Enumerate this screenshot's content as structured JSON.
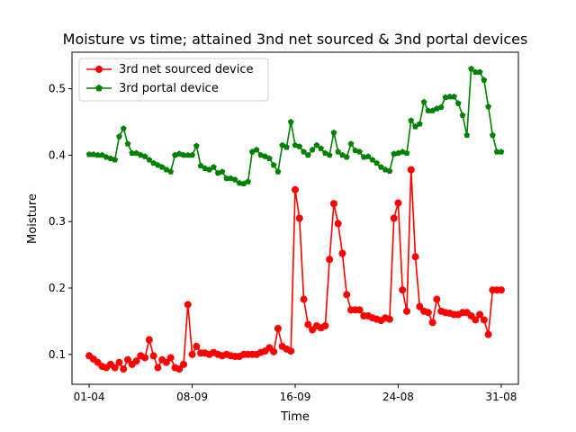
{
  "chart_data": {
    "type": "line",
    "title": "Moisture vs time; attained 3nd net sourced &  3nd portal devices",
    "xlabel": "Time",
    "ylabel": "Moisture",
    "x_ticks": [
      "01-04",
      "08-09",
      "16-09",
      "24-08",
      "31-08"
    ],
    "x_tick_index": [
      0,
      24,
      48,
      72,
      96
    ],
    "xlim": [
      -4,
      100
    ],
    "ylim": [
      0.055,
      0.555
    ],
    "y_ticks": [
      0.1,
      0.2,
      0.3,
      0.4,
      0.5
    ],
    "grid": false,
    "legend_position": "top-left",
    "series": [
      {
        "name": "3rd net sourced device",
        "color": "#ff0000",
        "marker": "circle",
        "x": [
          0,
          1,
          2,
          3,
          4,
          5,
          6,
          7,
          8,
          9,
          10,
          11,
          12,
          13,
          14,
          15,
          16,
          17,
          18,
          19,
          20,
          21,
          22,
          23,
          24,
          25,
          26,
          27,
          28,
          29,
          30,
          31,
          32,
          33,
          34,
          35,
          36,
          37,
          38,
          39,
          40,
          41,
          42,
          43,
          44,
          45,
          46,
          47,
          48,
          49,
          50,
          51,
          52,
          53,
          54,
          55,
          56,
          57,
          58,
          59,
          60,
          61,
          62,
          63,
          64,
          65,
          66,
          67,
          68,
          69,
          70,
          71,
          72,
          73,
          74,
          75,
          76,
          77,
          78,
          79,
          80,
          81,
          82,
          83,
          84,
          85,
          86,
          87,
          88,
          89,
          90,
          91,
          92,
          93,
          94,
          95,
          96
        ],
        "y": [
          0.098,
          0.093,
          0.088,
          0.082,
          0.08,
          0.085,
          0.08,
          0.088,
          0.078,
          0.092,
          0.085,
          0.09,
          0.098,
          0.095,
          0.122,
          0.098,
          0.08,
          0.092,
          0.088,
          0.095,
          0.08,
          0.078,
          0.085,
          0.175,
          0.1,
          0.112,
          0.102,
          0.102,
          0.1,
          0.103,
          0.1,
          0.098,
          0.1,
          0.098,
          0.097,
          0.097,
          0.1,
          0.1,
          0.1,
          0.1,
          0.103,
          0.105,
          0.11,
          0.104,
          0.139,
          0.112,
          0.108,
          0.105,
          0.348,
          0.305,
          0.183,
          0.145,
          0.137,
          0.143,
          0.14,
          0.143,
          0.243,
          0.327,
          0.297,
          0.252,
          0.19,
          0.167,
          0.167,
          0.167,
          0.158,
          0.158,
          0.155,
          0.153,
          0.151,
          0.155,
          0.153,
          0.305,
          0.328,
          0.197,
          0.165,
          0.378,
          0.247,
          0.172,
          0.165,
          0.163,
          0.148,
          0.183,
          0.165,
          0.163,
          0.162,
          0.16,
          0.16,
          0.163,
          0.163,
          0.158,
          0.152,
          0.16,
          0.152,
          0.13,
          0.197,
          0.197,
          0.197
        ]
      },
      {
        "name": "3rd portal device",
        "color": "#008000",
        "marker": "pentagon",
        "x": [
          0,
          1,
          2,
          3,
          4,
          5,
          6,
          7,
          8,
          9,
          10,
          11,
          12,
          13,
          14,
          15,
          16,
          17,
          18,
          19,
          20,
          21,
          22,
          23,
          24,
          25,
          26,
          27,
          28,
          29,
          30,
          31,
          32,
          33,
          34,
          35,
          36,
          37,
          38,
          39,
          40,
          41,
          42,
          43,
          44,
          45,
          46,
          47,
          48,
          49,
          50,
          51,
          52,
          53,
          54,
          55,
          56,
          57,
          58,
          59,
          60,
          61,
          62,
          63,
          64,
          65,
          66,
          67,
          68,
          69,
          70,
          71,
          72,
          73,
          74,
          75,
          76,
          77,
          78,
          79,
          80,
          81,
          82,
          83,
          84,
          85,
          86,
          87,
          88,
          89,
          90,
          91,
          92,
          93,
          94,
          95,
          96
        ],
        "y": [
          0.401,
          0.401,
          0.4,
          0.4,
          0.397,
          0.395,
          0.393,
          0.428,
          0.44,
          0.417,
          0.403,
          0.403,
          0.4,
          0.398,
          0.393,
          0.388,
          0.385,
          0.382,
          0.378,
          0.375,
          0.4,
          0.402,
          0.4,
          0.4,
          0.4,
          0.414,
          0.384,
          0.38,
          0.378,
          0.382,
          0.373,
          0.375,
          0.365,
          0.365,
          0.363,
          0.358,
          0.357,
          0.36,
          0.405,
          0.408,
          0.4,
          0.398,
          0.395,
          0.385,
          0.375,
          0.415,
          0.412,
          0.45,
          0.415,
          0.413,
          0.405,
          0.4,
          0.408,
          0.415,
          0.41,
          0.403,
          0.4,
          0.434,
          0.405,
          0.4,
          0.397,
          0.417,
          0.407,
          0.405,
          0.397,
          0.398,
          0.393,
          0.388,
          0.382,
          0.378,
          0.376,
          0.402,
          0.403,
          0.405,
          0.403,
          0.452,
          0.443,
          0.447,
          0.48,
          0.467,
          0.467,
          0.47,
          0.472,
          0.487,
          0.488,
          0.488,
          0.478,
          0.46,
          0.43,
          0.53,
          0.525,
          0.525,
          0.513,
          0.473,
          0.43,
          0.405,
          0.405
        ]
      }
    ]
  }
}
